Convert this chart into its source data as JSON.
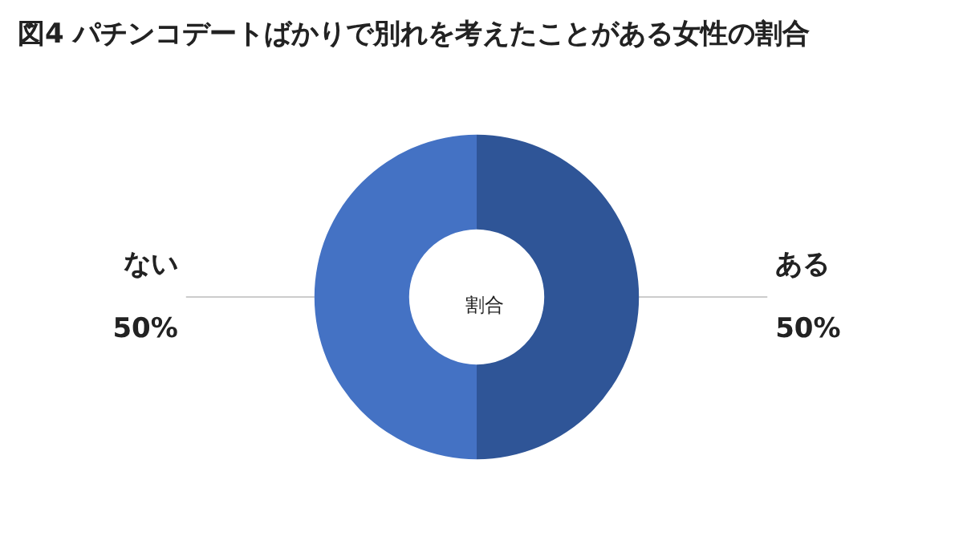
{
  "chart_data": {
    "type": "donut",
    "title": "図4 パチンコデートばかりで別れを考えたことがある女性の割合",
    "categories": [
      "ある",
      "ない"
    ],
    "values": [
      50,
      50
    ],
    "value_labels": [
      "50%",
      "50%"
    ],
    "colors": [
      "#2f5597",
      "#4472c4"
    ],
    "annotations": [
      "割合"
    ],
    "legend": false
  }
}
